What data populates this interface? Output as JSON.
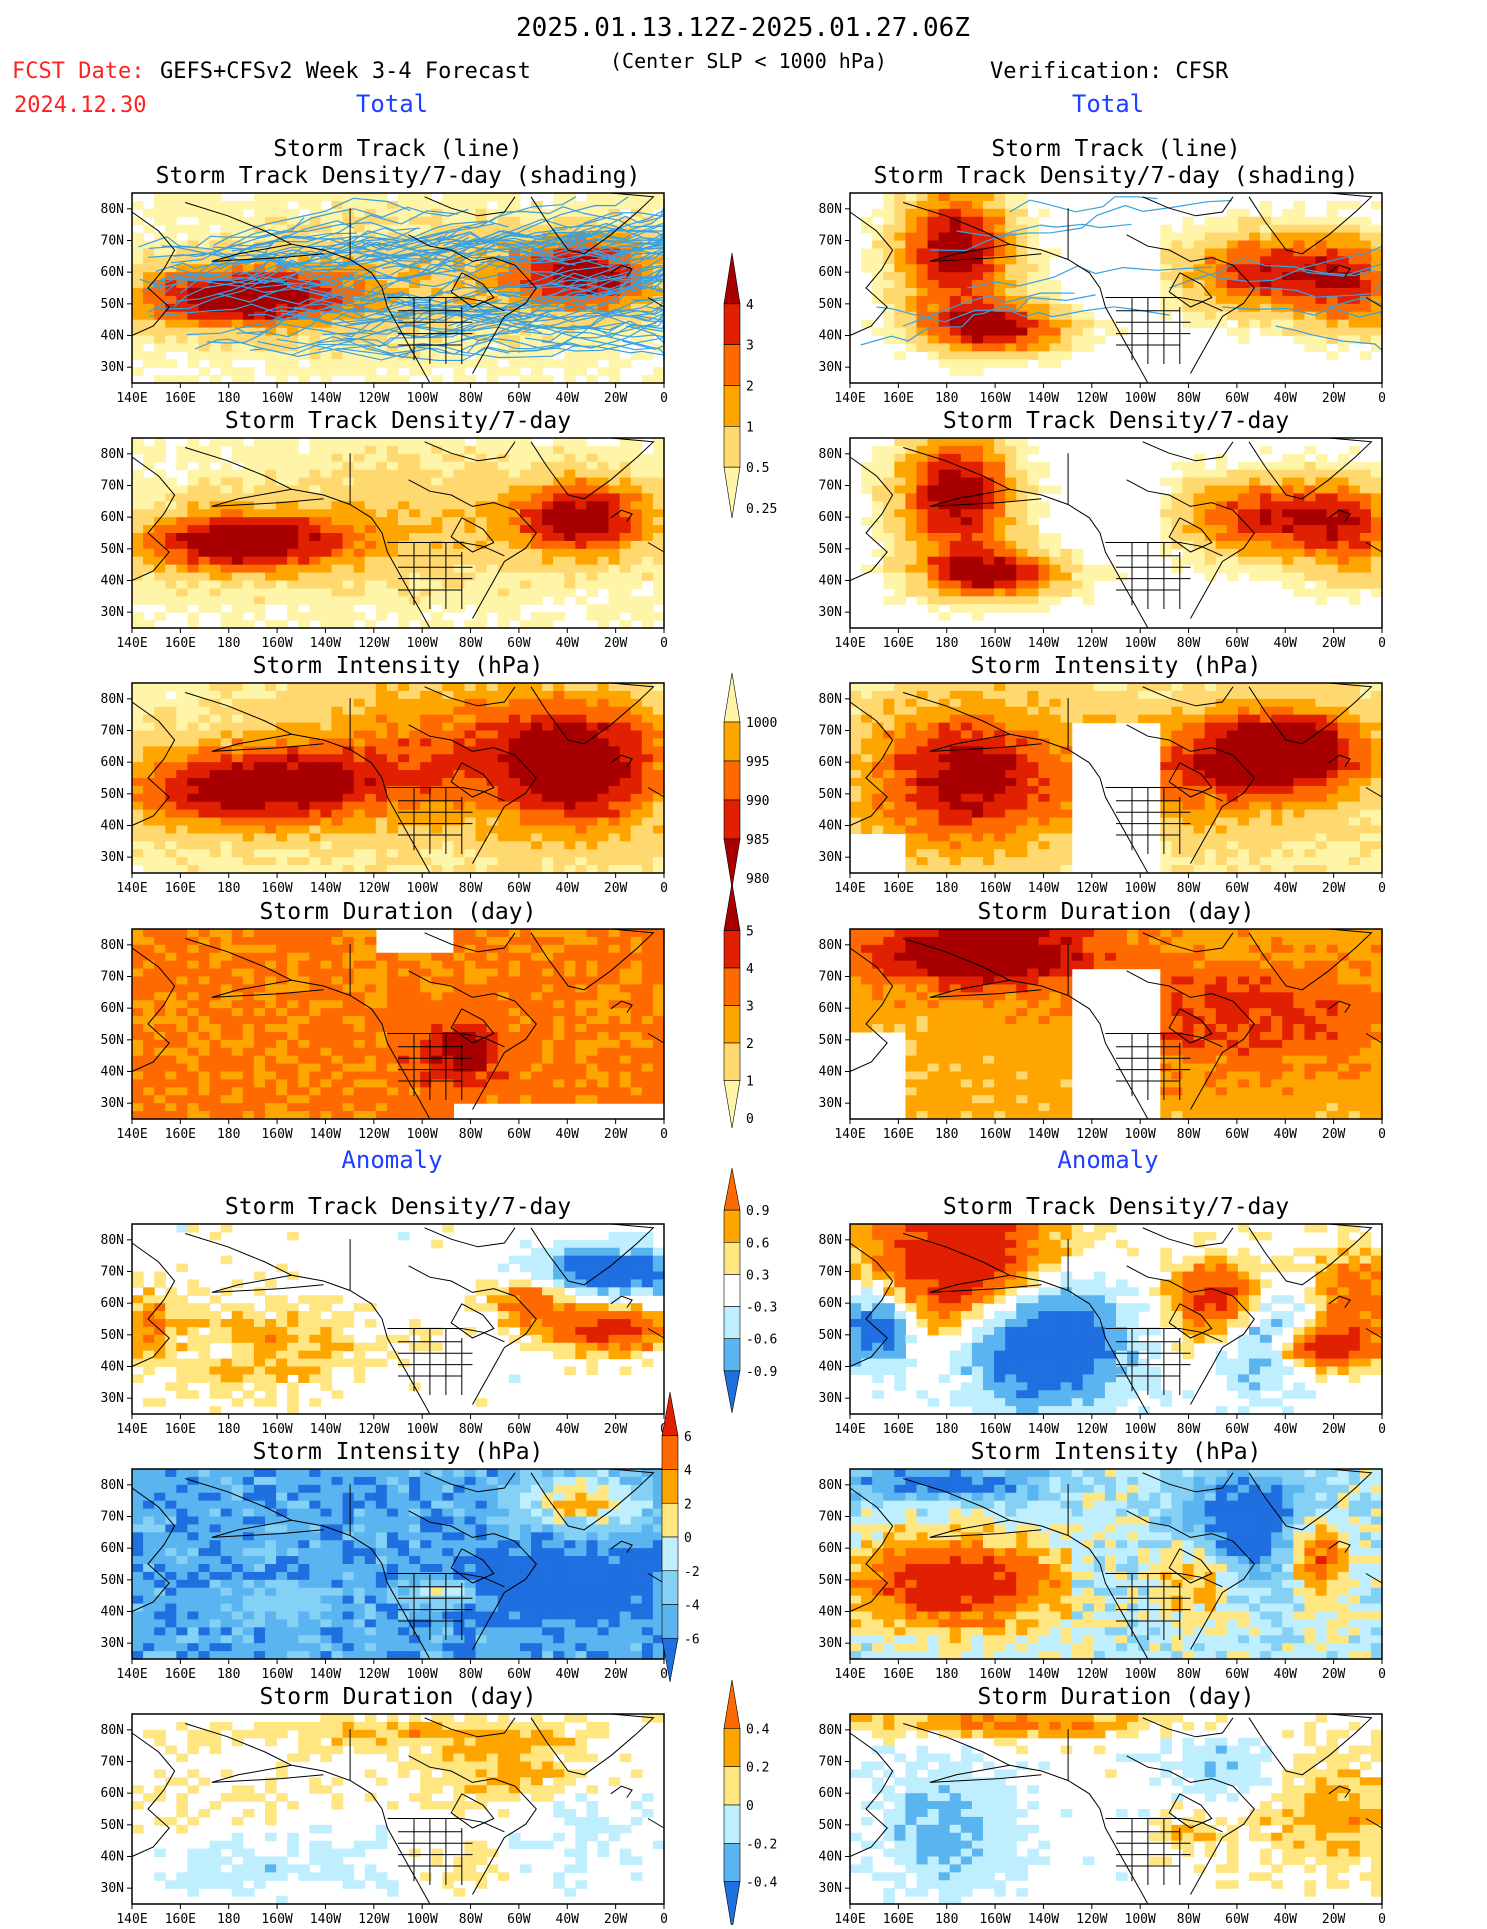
{
  "header": {
    "period": "2025.01.13.12Z-2025.01.27.06Z",
    "fcst_label": "FCST Date:",
    "fcst_date": "2024.12.30",
    "model": "GEFS+CFSv2 Week 3-4 Forecast",
    "criterion": "(Center SLP < 1000 hPa)",
    "verification": "Verification: CFSR"
  },
  "section_labels": {
    "total": "Total",
    "anomaly": "Anomaly"
  },
  "colors": {
    "title_red": "#ff2020",
    "section_blue": "#2040ff",
    "track_line": "#3aa0e0",
    "land_line": "#000000",
    "warm": [
      "#fff5a8",
      "#ffd870",
      "#ffa500",
      "#ff6a00",
      "#e02000",
      "#a80000"
    ],
    "cool": [
      "#bfefff",
      "#5ab4f0",
      "#1f6fe0"
    ]
  },
  "chart_data": [
    {
      "type": "heatmap",
      "column": "forecast",
      "title_lines": [
        "Storm Track (line)",
        "Storm Track Density/7-day (shading)"
      ],
      "x_ticks": [
        "140E",
        "160E",
        "180",
        "160W",
        "140W",
        "120W",
        "100W",
        "80W",
        "60W",
        "40W",
        "20W",
        "0"
      ],
      "y_ticks": [
        "80N",
        "70N",
        "60N",
        "50N",
        "40N",
        "30N"
      ],
      "ylim": [
        25,
        85
      ],
      "overlay": "storm tracks",
      "pattern": "density_fcst"
    },
    {
      "type": "heatmap",
      "column": "verification",
      "title_lines": [
        "Storm Track (line)",
        "Storm Track Density/7-day (shading)"
      ],
      "x_ticks": [
        "140E",
        "160E",
        "180",
        "160W",
        "140W",
        "120W",
        "100W",
        "80W",
        "60W",
        "40W",
        "20W",
        "0"
      ],
      "y_ticks": [
        "80N",
        "70N",
        "60N",
        "50N",
        "40N",
        "30N"
      ],
      "ylim": [
        25,
        85
      ],
      "overlay": "storm tracks",
      "pattern": "density_obs"
    },
    {
      "type": "heatmap",
      "column": "forecast",
      "title_lines": [
        "Storm Track Density/7-day"
      ],
      "pattern": "density_fcst"
    },
    {
      "type": "heatmap",
      "column": "verification",
      "title_lines": [
        "Storm Track Density/7-day"
      ],
      "pattern": "density_obs"
    },
    {
      "type": "heatmap",
      "column": "forecast",
      "title_lines": [
        "Storm Intensity (hPa)"
      ],
      "pattern": "intensity_fcst"
    },
    {
      "type": "heatmap",
      "column": "verification",
      "title_lines": [
        "Storm Intensity (hPa)"
      ],
      "pattern": "intensity_obs"
    },
    {
      "type": "heatmap",
      "column": "forecast",
      "title_lines": [
        "Storm Duration (day)"
      ],
      "pattern": "duration_fcst"
    },
    {
      "type": "heatmap",
      "column": "verification",
      "title_lines": [
        "Storm Duration (day)"
      ],
      "pattern": "duration_obs"
    },
    {
      "type": "heatmap",
      "column": "forecast",
      "title_lines": [
        "Storm Track Density/7-day"
      ],
      "pattern": "anom_density_fcst"
    },
    {
      "type": "heatmap",
      "column": "verification",
      "title_lines": [
        "Storm Track Density/7-day"
      ],
      "pattern": "anom_density_obs"
    },
    {
      "type": "heatmap",
      "column": "forecast",
      "title_lines": [
        "Storm Intensity (hPa)"
      ],
      "pattern": "anom_intensity_fcst"
    },
    {
      "type": "heatmap",
      "column": "verification",
      "title_lines": [
        "Storm Intensity (hPa)"
      ],
      "pattern": "anom_intensity_obs"
    },
    {
      "type": "heatmap",
      "column": "forecast",
      "title_lines": [
        "Storm Duration (day)"
      ],
      "pattern": "anom_duration_fcst"
    },
    {
      "type": "heatmap",
      "column": "verification",
      "title_lines": [
        "Storm Duration (day)"
      ],
      "pattern": "anom_duration_obs"
    }
  ],
  "colorbars": [
    {
      "name": "density-colorbar",
      "labels": [
        "4",
        "3",
        "2",
        "1",
        "0.5",
        "0.25"
      ],
      "colors": [
        "#a80000",
        "#e02000",
        "#ff6a00",
        "#ffa500",
        "#ffd870",
        "#fff5a8"
      ]
    },
    {
      "name": "intensity-colorbar",
      "labels": [
        "1000",
        "995",
        "990",
        "985",
        "980"
      ],
      "colors": [
        "#fff5a8",
        "#ffa500",
        "#ff6a00",
        "#e02000",
        "#a80000"
      ]
    },
    {
      "name": "duration-colorbar",
      "labels": [
        "5",
        "4",
        "3",
        "2",
        "1",
        "0"
      ],
      "colors": [
        "#a80000",
        "#e02000",
        "#ff6a00",
        "#ffa500",
        "#ffd870",
        "#fff5a8"
      ]
    },
    {
      "name": "anom-density-colorbar",
      "labels": [
        "0.9",
        "0.6",
        "0.3",
        "-0.3",
        "-0.6",
        "-0.9"
      ],
      "colors": [
        "#ff6a00",
        "#ffa500",
        "#ffe680",
        "#ffffff",
        "#bfefff",
        "#5ab4f0",
        "#1f6fe0"
      ]
    },
    {
      "name": "anom-intensity-colorbar",
      "labels": [
        "6",
        "4",
        "2",
        "0",
        "-2",
        "-4",
        "-6"
      ],
      "colors": [
        "#e02000",
        "#ff6a00",
        "#ffa500",
        "#ffe680",
        "#bfefff",
        "#85d0f5",
        "#5ab4f0",
        "#1f6fe0"
      ]
    },
    {
      "name": "anom-duration-colorbar",
      "labels": [
        "0.4",
        "0.2",
        "0",
        "-0.2",
        "-0.4"
      ],
      "colors": [
        "#ff6a00",
        "#ffa500",
        "#ffe680",
        "#bfefff",
        "#5ab4f0",
        "#1f6fe0"
      ]
    }
  ]
}
